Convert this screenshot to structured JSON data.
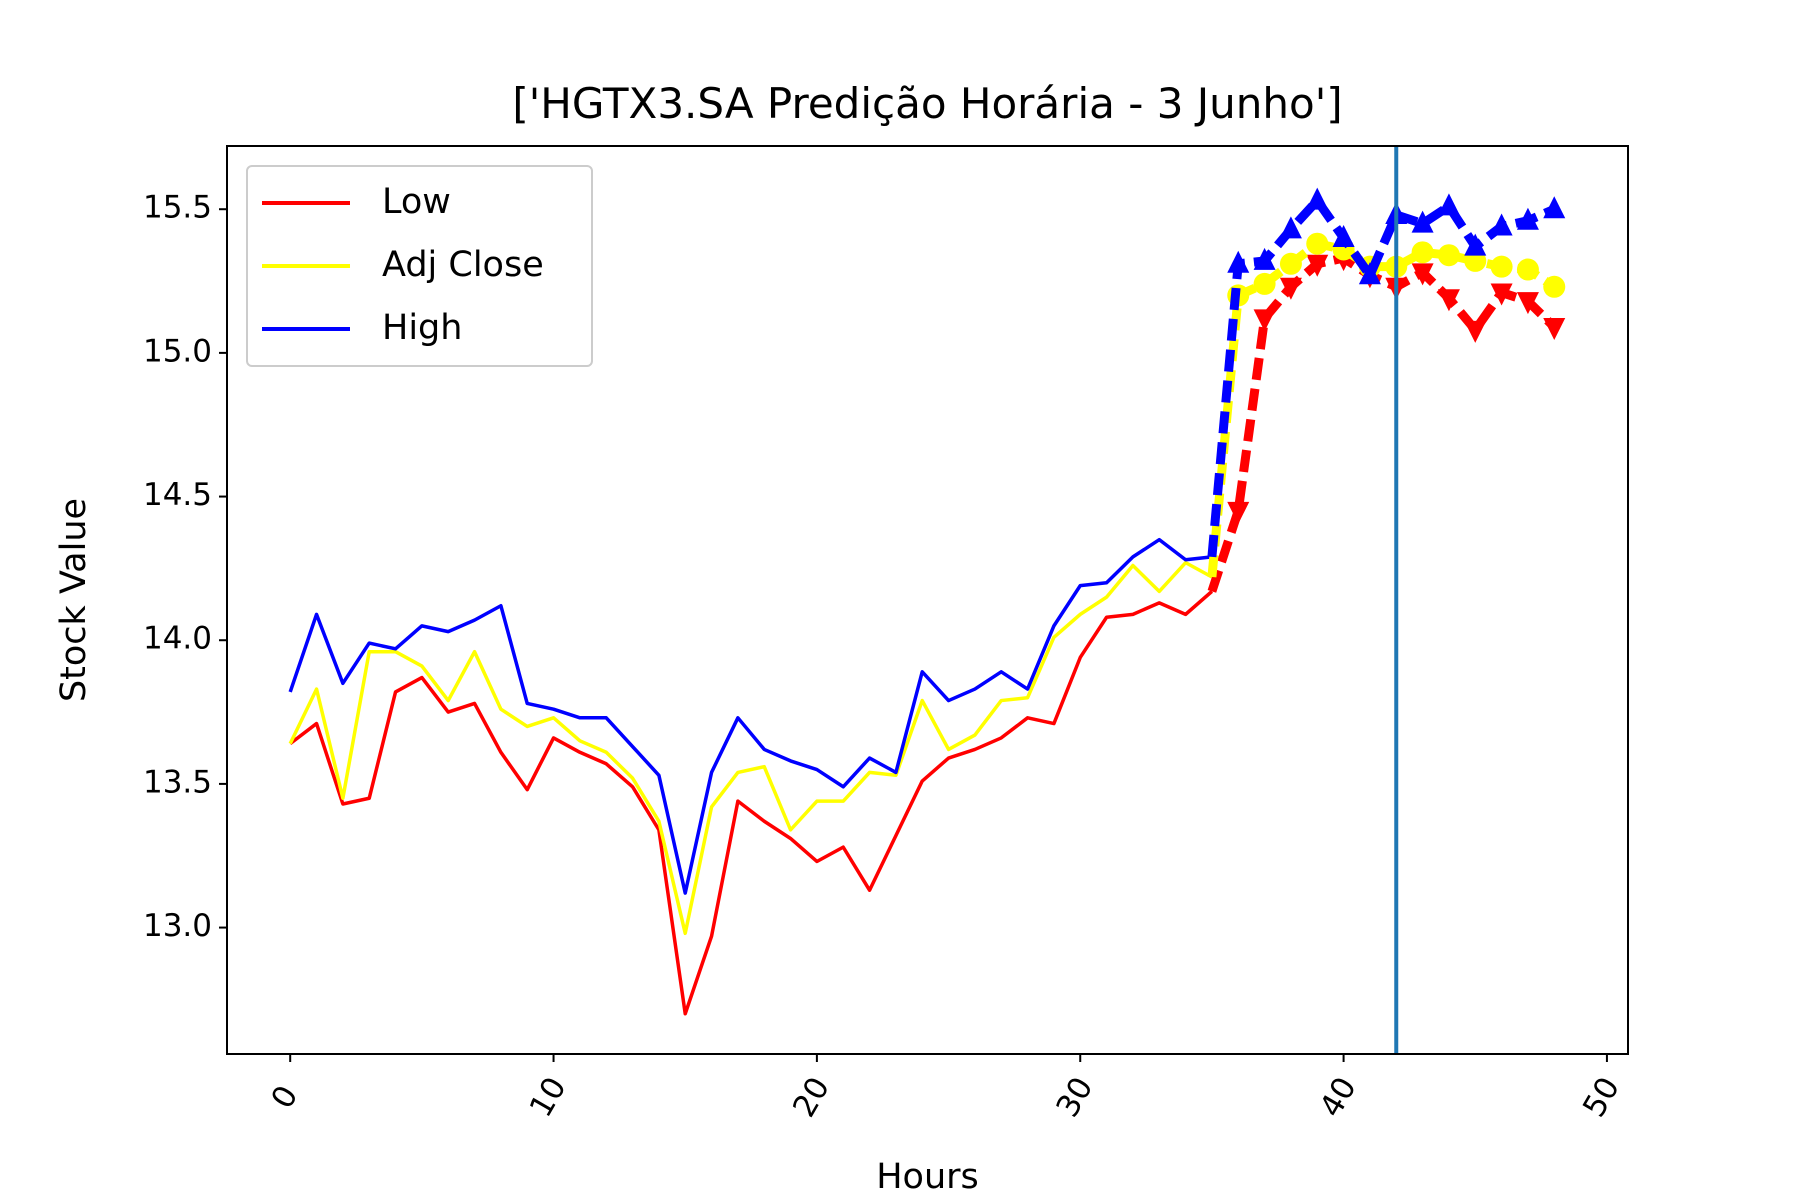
{
  "chart_data": {
    "type": "line",
    "title": "['HGTX3.SA Predição Horária - 3 Junho']",
    "xlabel": "Hours",
    "ylabel": "Stock Value",
    "xlim": [
      -2.4,
      50.8
    ],
    "ylim": [
      12.56,
      15.72
    ],
    "xticks": [
      0,
      10,
      20,
      30,
      40,
      50
    ],
    "xtick_labels": [
      "0",
      "10",
      "20",
      "30",
      "40",
      "50"
    ],
    "xtick_rotation": -60,
    "yticks": [
      13.0,
      13.5,
      14.0,
      14.5,
      15.0,
      15.5
    ],
    "ytick_labels": [
      "13.0",
      "13.5",
      "14.0",
      "14.5",
      "15.0",
      "15.5"
    ],
    "grid": false,
    "legend": {
      "position": "top-left",
      "entries": [
        {
          "label": "Low",
          "color": "#ff0000"
        },
        {
          "label": "Adj Close",
          "color": "#ffff00"
        },
        {
          "label": "High",
          "color": "#0000ff"
        }
      ]
    },
    "vertical_line": {
      "x": 42,
      "color": "#1f77b4"
    },
    "series": [
      {
        "name": "Low",
        "color": "#ff0000",
        "x": [
          0,
          1,
          2,
          3,
          4,
          5,
          6,
          7,
          8,
          9,
          10,
          11,
          12,
          13,
          14,
          15,
          16,
          17,
          18,
          19,
          20,
          21,
          22,
          23,
          24,
          25,
          26,
          27,
          28,
          29,
          30,
          31,
          32,
          33,
          34,
          35
        ],
        "values": [
          13.64,
          13.71,
          13.43,
          13.45,
          13.82,
          13.87,
          13.75,
          13.78,
          13.61,
          13.48,
          13.66,
          13.61,
          13.57,
          13.49,
          13.34,
          12.7,
          12.97,
          13.44,
          13.37,
          13.31,
          13.23,
          13.28,
          13.13,
          13.32,
          13.51,
          13.59,
          13.62,
          13.66,
          13.73,
          13.71,
          13.94,
          14.08,
          14.09,
          14.13,
          14.09,
          14.17
        ]
      },
      {
        "name": "Adj Close",
        "color": "#ffff00",
        "x": [
          0,
          1,
          2,
          3,
          4,
          5,
          6,
          7,
          8,
          9,
          10,
          11,
          12,
          13,
          14,
          15,
          16,
          17,
          18,
          19,
          20,
          21,
          22,
          23,
          24,
          25,
          26,
          27,
          28,
          29,
          30,
          31,
          32,
          33,
          34,
          35
        ],
        "values": [
          13.64,
          13.83,
          13.45,
          13.96,
          13.96,
          13.91,
          13.79,
          13.96,
          13.76,
          13.7,
          13.73,
          13.65,
          13.61,
          13.52,
          13.37,
          12.98,
          13.42,
          13.54,
          13.56,
          13.34,
          13.44,
          13.44,
          13.54,
          13.53,
          13.79,
          13.62,
          13.67,
          13.79,
          13.8,
          14.01,
          14.09,
          14.15,
          14.26,
          14.17,
          14.27,
          14.22
        ]
      },
      {
        "name": "High",
        "color": "#0000ff",
        "x": [
          0,
          1,
          2,
          3,
          4,
          5,
          6,
          7,
          8,
          9,
          10,
          11,
          12,
          13,
          14,
          15,
          16,
          17,
          18,
          19,
          20,
          21,
          22,
          23,
          24,
          25,
          26,
          27,
          28,
          29,
          30,
          31,
          32,
          33,
          34,
          35
        ],
        "values": [
          13.82,
          14.09,
          13.85,
          13.99,
          13.97,
          14.05,
          14.03,
          14.07,
          14.12,
          13.78,
          13.76,
          13.73,
          13.73,
          13.63,
          13.53,
          13.12,
          13.54,
          13.73,
          13.62,
          13.58,
          13.55,
          13.49,
          13.59,
          13.54,
          13.89,
          13.79,
          13.83,
          13.89,
          13.83,
          14.05,
          14.19,
          14.2,
          14.29,
          14.35,
          14.28,
          14.29
        ]
      },
      {
        "name": "",
        "color": "#ff0000",
        "style": "dashed",
        "marker": "triangle-down",
        "x": [
          35,
          36,
          37,
          38,
          39,
          40,
          41,
          42,
          43,
          44,
          45,
          46,
          47,
          48
        ],
        "values": [
          14.17,
          14.45,
          15.12,
          15.23,
          15.31,
          15.33,
          15.27,
          15.23,
          15.28,
          15.19,
          15.08,
          15.21,
          15.18,
          15.09
        ]
      },
      {
        "name": "",
        "color": "#ffff00",
        "style": "dashed",
        "marker": "circle",
        "x": [
          35,
          36,
          37,
          38,
          39,
          40,
          41,
          42,
          43,
          44,
          45,
          46,
          47,
          48
        ],
        "values": [
          14.22,
          15.2,
          15.24,
          15.31,
          15.38,
          15.36,
          15.3,
          15.3,
          15.35,
          15.34,
          15.32,
          15.3,
          15.29,
          15.23
        ]
      },
      {
        "name": "",
        "color": "#0000ff",
        "style": "dashed",
        "marker": "triangle-up",
        "x": [
          35,
          36,
          37,
          38,
          39,
          40,
          41,
          42,
          43,
          44,
          45,
          46,
          47,
          48
        ],
        "values": [
          14.29,
          15.31,
          15.32,
          15.43,
          15.53,
          15.4,
          15.27,
          15.48,
          15.45,
          15.51,
          15.37,
          15.44,
          15.46,
          15.5
        ]
      }
    ]
  }
}
